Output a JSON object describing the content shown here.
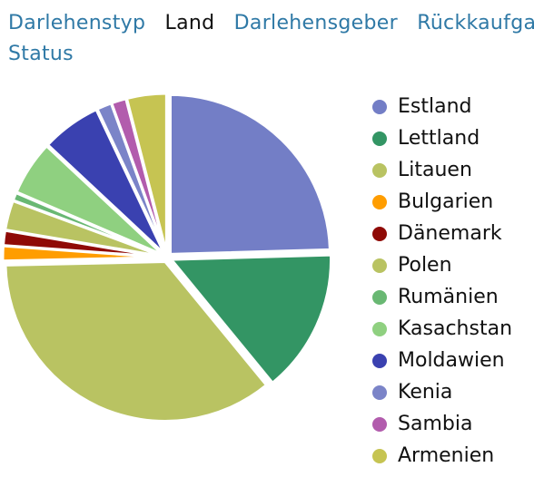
{
  "tabs": [
    {
      "label": "Darlehenstyp",
      "active": false
    },
    {
      "label": "Land",
      "active": true
    },
    {
      "label": "Darlehensgeber",
      "active": false
    },
    {
      "label": "Rückkaufgar",
      "active": false
    }
  ],
  "tab_status": {
    "label": "Status",
    "active": false
  },
  "chart_data": {
    "type": "pie",
    "title": "",
    "legend_position": "right",
    "slices": [
      {
        "label": "Estland",
        "value": 24.5,
        "color": "#737ec6"
      },
      {
        "label": "Lettland",
        "value": 14.5,
        "color": "#339564"
      },
      {
        "label": "Litauen",
        "value": 35.5,
        "color": "#b9c362"
      },
      {
        "label": "Bulgarien",
        "value": 1.5,
        "color": "#ff9d00"
      },
      {
        "label": "Dänemark",
        "value": 1.5,
        "color": "#8f0a06"
      },
      {
        "label": "Polen",
        "value": 3.0,
        "color": "#b9c362"
      },
      {
        "label": "Rumänien",
        "value": 0.8,
        "color": "#69b873"
      },
      {
        "label": "Kasachstan",
        "value": 5.5,
        "color": "#8fd080"
      },
      {
        "label": "Moldawien",
        "value": 6.0,
        "color": "#3a41b0"
      },
      {
        "label": "Kenia",
        "value": 1.5,
        "color": "#7b84c8"
      },
      {
        "label": "Sambia",
        "value": 1.5,
        "color": "#b25cad"
      },
      {
        "label": "Armenien",
        "value": 4.0,
        "color": "#c6c452"
      }
    ]
  }
}
